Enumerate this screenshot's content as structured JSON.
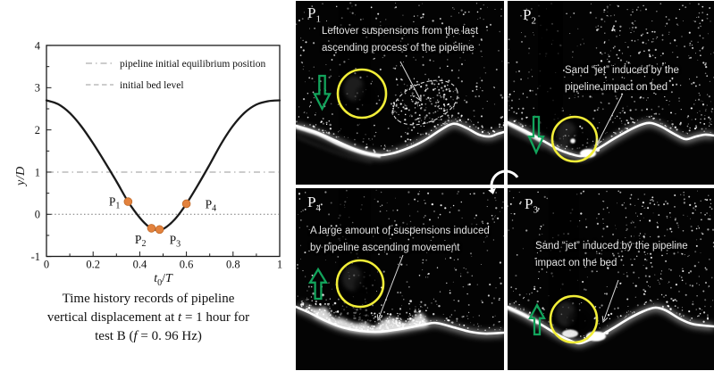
{
  "chart": {
    "legend": [
      {
        "label": "pipeline initial equilibrium position",
        "line_style": "dashdot"
      },
      {
        "label": "initial bed level",
        "line_style": "dashed"
      }
    ],
    "y_axis_label": "y/D",
    "x_axis_label": {
      "var": "t",
      "sub": "0",
      "divider": "/",
      "var2": "T"
    },
    "caption": {
      "line1": "Time history records of pipeline",
      "line2": [
        "vertical displacement at ",
        "t",
        " = 1 hour for"
      ],
      "line3": [
        "test B (",
        "f",
        " = 0. 96 Hz)"
      ]
    }
  },
  "chart_data": {
    "type": "line",
    "title": "",
    "xlabel": "t0/T",
    "ylabel": "y/D",
    "xlim": [
      0,
      1
    ],
    "ylim": [
      -1,
      4
    ],
    "xticks": [
      0,
      0.2,
      0.4,
      0.6,
      0.8,
      1
    ],
    "xtick_labels": [
      "0",
      "0.2",
      "0.4",
      "0.6",
      "0.8",
      "1"
    ],
    "yticks": [
      -1,
      0,
      1,
      2,
      3,
      4
    ],
    "x_minor_step": 0.1,
    "y_minor_step": 0.5,
    "grid": false,
    "legend_position": "top-left-inside",
    "series": [
      {
        "name": "pipeline vertical displacement",
        "color": "#1a1a1a",
        "x": [
          0,
          0.05,
          0.1,
          0.15,
          0.2,
          0.25,
          0.3,
          0.35,
          0.4,
          0.44,
          0.47,
          0.5,
          0.55,
          0.6,
          0.65,
          0.7,
          0.75,
          0.8,
          0.85,
          0.9,
          0.95,
          1.0
        ],
        "y": [
          2.7,
          2.61,
          2.4,
          2.08,
          1.68,
          1.24,
          0.78,
          0.3,
          -0.08,
          -0.3,
          -0.37,
          -0.35,
          -0.12,
          0.25,
          0.7,
          1.18,
          1.68,
          2.1,
          2.41,
          2.6,
          2.68,
          2.7
        ]
      }
    ],
    "reference_lines": [
      {
        "y": 1,
        "style": "dashdot",
        "color": "#9a9a9a",
        "label": "pipeline initial equilibrium position"
      },
      {
        "y": 0,
        "style": "dotted",
        "color": "#777777",
        "label": "initial bed level"
      }
    ],
    "marked_points": [
      {
        "name": "P",
        "sub": "1",
        "x": 0.35,
        "y": 0.3
      },
      {
        "name": "P",
        "sub": "2",
        "x": 0.45,
        "y": -0.33
      },
      {
        "name": "P",
        "sub": "3",
        "x": 0.485,
        "y": -0.36
      },
      {
        "name": "P",
        "sub": "4",
        "x": 0.6,
        "y": 0.25
      }
    ],
    "marker_color": "#e3823d"
  },
  "panels": [
    {
      "id": "panel-p1",
      "label": "P",
      "sub": "1",
      "position": "top-left",
      "motion_arrow": "down",
      "annotation": {
        "lines": [
          "Leftover suspensions from the last",
          "ascending process of the pipeline"
        ]
      }
    },
    {
      "id": "panel-p2",
      "label": "P",
      "sub": "2",
      "position": "top-right",
      "motion_arrow": "down",
      "annotation": {
        "lines": [
          "Sand “jet” induced by the",
          "pipeline impact on bed"
        ]
      }
    },
    {
      "id": "panel-p3",
      "label": "P",
      "sub": "3",
      "position": "bottom-right",
      "motion_arrow": "up",
      "annotation": {
        "lines": [
          "Sand “jet” induced by the pipeline",
          "impact on the bed"
        ]
      }
    },
    {
      "id": "panel-p4",
      "label": "P",
      "sub": "4",
      "position": "bottom-left",
      "motion_arrow": "up",
      "annotation": {
        "lines": [
          "A large amount of suspensions induced",
          "by pipeline ascending movement"
        ]
      }
    }
  ],
  "colors": {
    "marker_orange": "#e3823d",
    "arrow_green": "#12a35b",
    "circle_yellow": "#f2ee38",
    "curve_black": "#1a1a1a",
    "reference_gray": "#9a9a9a",
    "photo_text": "#e3e3e3",
    "bed_white": "#ffffff"
  }
}
